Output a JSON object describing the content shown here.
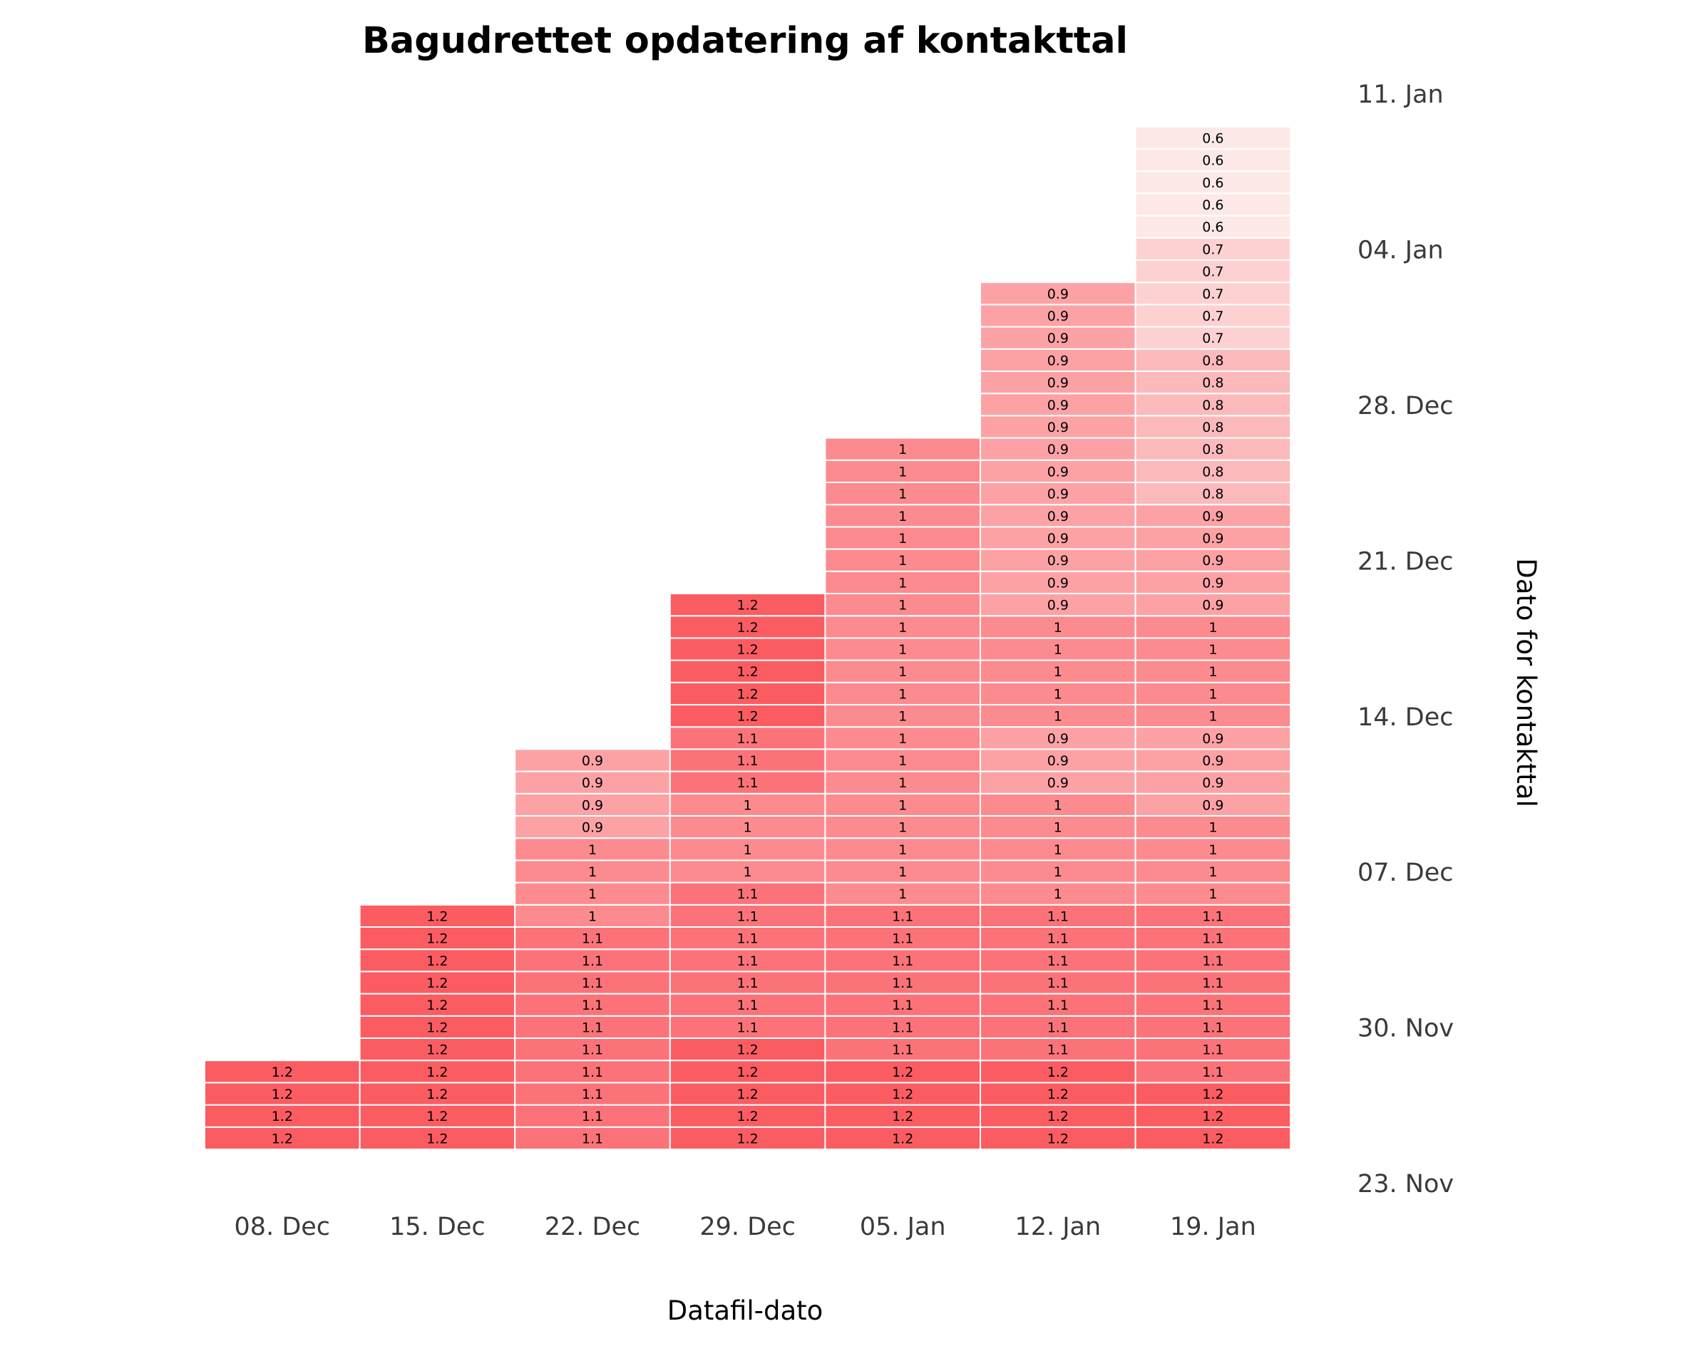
{
  "chart_data": {
    "type": "heatmap",
    "title": "Bagudrettet opdatering af kontakttal",
    "xlabel": "Datafil-dato",
    "ylabel": "Dato for kontakttal",
    "x_tick_labels": [
      "08. Dec",
      "15. Dec",
      "22. Dec",
      "29. Dec",
      "05. Jan",
      "12. Jan",
      "19. Jan"
    ],
    "y_tick_labels": [
      "23. Nov",
      "30. Nov",
      "07. Dec",
      "14. Dec",
      "21. Dec",
      "28. Dec",
      "04. Jan",
      "11. Jan"
    ],
    "y_tick_dates": [
      "2020-11-23",
      "2020-11-30",
      "2020-12-07",
      "2020-12-14",
      "2020-12-21",
      "2020-12-28",
      "2021-01-04",
      "2021-01-11"
    ],
    "y_start_date": "2020-11-26",
    "color_scale": {
      "low": "#fde8e8",
      "high": "#fb5c62"
    },
    "columns": [
      {
        "file_date": "08. Dec",
        "values": [
          1.2,
          1.2,
          1.2,
          1.2
        ]
      },
      {
        "file_date": "15. Dec",
        "values": [
          1.2,
          1.2,
          1.2,
          1.2,
          1.2,
          1.2,
          1.2,
          1.2,
          1.2,
          1.2,
          1.2
        ]
      },
      {
        "file_date": "22. Dec",
        "values": [
          1.1,
          1.1,
          1.1,
          1.1,
          1.1,
          1.1,
          1.1,
          1.1,
          1.1,
          1.1,
          1,
          1,
          1,
          1,
          0.9,
          0.9,
          0.9,
          0.9
        ]
      },
      {
        "file_date": "29. Dec",
        "values": [
          1.2,
          1.2,
          1.2,
          1.2,
          1.2,
          1.1,
          1.1,
          1.1,
          1.1,
          1.1,
          1.1,
          1.1,
          1,
          1,
          1,
          1,
          1.1,
          1.1,
          1.1,
          1.2,
          1.2,
          1.2,
          1.2,
          1.2,
          1.2
        ]
      },
      {
        "file_date": "05. Jan",
        "values": [
          1.2,
          1.2,
          1.2,
          1.2,
          1.1,
          1.1,
          1.1,
          1.1,
          1.1,
          1.1,
          1.1,
          1,
          1,
          1,
          1,
          1,
          1,
          1,
          1,
          1,
          1,
          1,
          1,
          1,
          1,
          1,
          1,
          1,
          1,
          1,
          1,
          1
        ]
      },
      {
        "file_date": "12. Jan",
        "values": [
          1.2,
          1.2,
          1.2,
          1.2,
          1.1,
          1.1,
          1.1,
          1.1,
          1.1,
          1.1,
          1.1,
          1,
          1,
          1,
          1,
          1,
          0.9,
          0.9,
          0.9,
          1,
          1,
          1,
          1,
          1,
          0.9,
          0.9,
          0.9,
          0.9,
          0.9,
          0.9,
          0.9,
          0.9,
          0.9,
          0.9,
          0.9,
          0.9,
          0.9,
          0.9,
          0.9
        ]
      },
      {
        "file_date": "19. Jan",
        "values": [
          1.2,
          1.2,
          1.2,
          1.1,
          1.1,
          1.1,
          1.1,
          1.1,
          1.1,
          1.1,
          1.1,
          1,
          1,
          1,
          1,
          0.9,
          0.9,
          0.9,
          0.9,
          1,
          1,
          1,
          1,
          1,
          0.9,
          0.9,
          0.9,
          0.9,
          0.9,
          0.8,
          0.8,
          0.8,
          0.8,
          0.8,
          0.8,
          0.8,
          0.7,
          0.7,
          0.7,
          0.7,
          0.7,
          0.6,
          0.6,
          0.6,
          0.6,
          0.6
        ]
      }
    ]
  }
}
